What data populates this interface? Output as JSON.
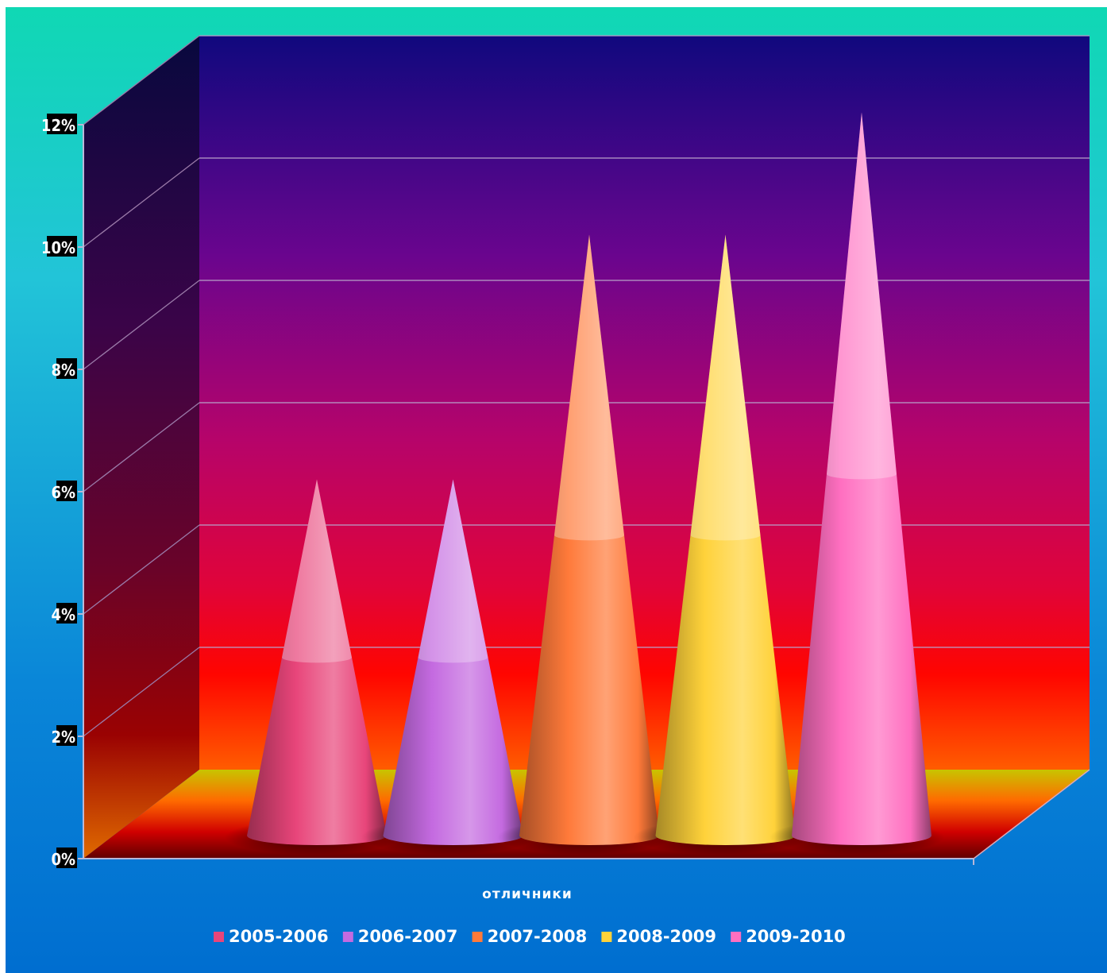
{
  "chart_data": {
    "type": "bar",
    "bar_shape": "cone",
    "three_d": true,
    "categories": [
      "отличники"
    ],
    "series": [
      {
        "name": "2005-2006",
        "values": [
          5.5
        ],
        "color": "#e8457a"
      },
      {
        "name": "2006-2007",
        "values": [
          5.5
        ],
        "color": "#c46ae0"
      },
      {
        "name": "2007-2008",
        "values": [
          9.5
        ],
        "color": "#ff7a3a"
      },
      {
        "name": "2008-2009",
        "values": [
          9.5
        ],
        "color": "#ffd23a"
      },
      {
        "name": "2009-2010",
        "values": [
          11.5
        ],
        "color": "#ff6fc0"
      }
    ],
    "yticks": [
      "0%",
      "2%",
      "4%",
      "6%",
      "8%",
      "10%",
      "12%"
    ],
    "ylim": [
      0,
      12
    ],
    "ytick_step": 2,
    "grid": true,
    "legend_position": "bottom"
  }
}
